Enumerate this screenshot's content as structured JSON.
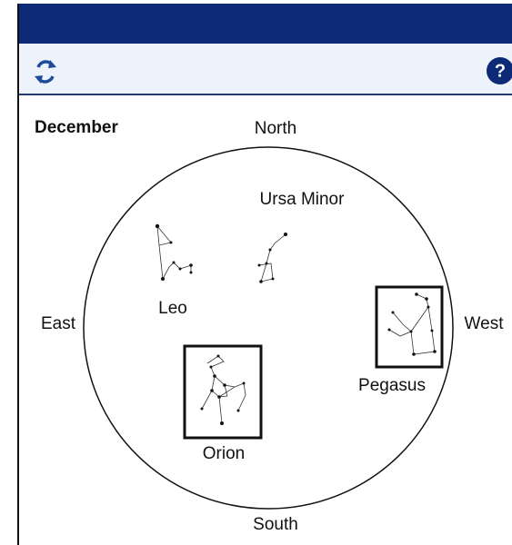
{
  "toolbar": {
    "help_label": "?"
  },
  "sky_map": {
    "month": "December",
    "directions": {
      "north": "North",
      "south": "South",
      "east": "East",
      "west": "West"
    },
    "constellations": [
      "Ursa Minor",
      "Leo",
      "Pegasus",
      "Orion"
    ]
  }
}
